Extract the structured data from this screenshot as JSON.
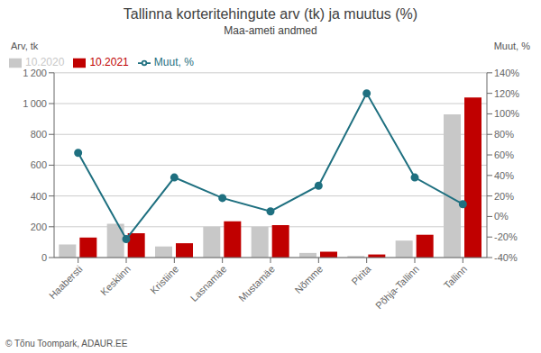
{
  "chart_data": {
    "type": "bar",
    "title": "Tallinna korteritehingute arv (tk) ja muutus (%)",
    "subtitle": "Maa-ameti andmed",
    "ylabel": "Arv, tk",
    "y2label": "Muut, %",
    "categories": [
      "Haabersti",
      "Kesklinn",
      "Kristiine",
      "Lasnamäe",
      "Mustamäe",
      "Nõmme",
      "Pirita",
      "Põhja-Tallinn",
      "Tallinn"
    ],
    "series": [
      {
        "name": "10.2020",
        "type": "bar",
        "color": "#c8c8c8",
        "values": [
          85,
          220,
          72,
          200,
          200,
          30,
          10,
          110,
          930
        ]
      },
      {
        "name": "10.2021",
        "type": "bar",
        "color": "#c00000",
        "values": [
          130,
          158,
          93,
          235,
          210,
          38,
          20,
          148,
          1040
        ]
      },
      {
        "name": "Muut, %",
        "type": "line",
        "axis": "y2",
        "color": "#1f7080",
        "marker": "circle",
        "values": [
          62,
          -22,
          38,
          18,
          5,
          30,
          120,
          38,
          12
        ]
      }
    ],
    "ylim": [
      0,
      1200
    ],
    "yticks": [
      0,
      200,
      400,
      600,
      800,
      {
        "value": 1000,
        "label": "1 000"
      },
      {
        "value": 1200,
        "label": "1 200"
      }
    ],
    "y2lim": [
      -40,
      140
    ],
    "y2ticks": [
      {
        "value": -40,
        "label": "-40%"
      },
      {
        "value": -20,
        "label": "-20%"
      },
      {
        "value": 0,
        "label": "0%"
      },
      {
        "value": 20,
        "label": "20%"
      },
      {
        "value": 40,
        "label": "40%"
      },
      {
        "value": 60,
        "label": "60%"
      },
      {
        "value": 80,
        "label": "80%"
      },
      {
        "value": 100,
        "label": "100%"
      },
      {
        "value": 120,
        "label": "120%"
      },
      {
        "value": 140,
        "label": "140%"
      }
    ],
    "grid": true,
    "legend": "upper left",
    "annotations": [
      "© Tõnu Toompark, ADAUR.EE"
    ]
  }
}
